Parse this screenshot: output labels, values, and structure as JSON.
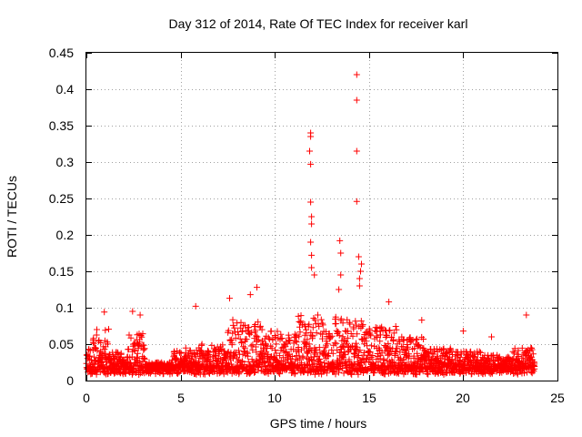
{
  "chart_data": {
    "type": "scatter",
    "title": "Day 312 of 2014, Rate Of TEC Index for receiver karl",
    "xlabel": "GPS time / hours",
    "ylabel": "ROTI / TECUs",
    "xlim": [
      0,
      25
    ],
    "ylim": [
      0,
      0.45
    ],
    "xticks": [
      0,
      5,
      10,
      15,
      20,
      25
    ],
    "xtick_labels": [
      "0",
      "5",
      "10",
      "15",
      "20",
      "25"
    ],
    "yticks": [
      0,
      0.05,
      0.1,
      0.15,
      0.2,
      0.25,
      0.3,
      0.35,
      0.4,
      0.45
    ],
    "ytick_labels": [
      "0",
      "0.05",
      "0.1",
      "0.15",
      "0.2",
      "0.25",
      "0.3",
      "0.35",
      "0.4",
      "0.45"
    ],
    "grid": true,
    "marker": "+",
    "color": "#ff0000",
    "data_range_hours": [
      0,
      23.8
    ],
    "series": [
      {
        "name": "ROTI",
        "notable_points": [
          {
            "x": 0.95,
            "y": 0.094
          },
          {
            "x": 2.45,
            "y": 0.095
          },
          {
            "x": 2.85,
            "y": 0.09
          },
          {
            "x": 5.8,
            "y": 0.102
          },
          {
            "x": 7.6,
            "y": 0.113
          },
          {
            "x": 8.7,
            "y": 0.118
          },
          {
            "x": 9.05,
            "y": 0.128
          },
          {
            "x": 11.9,
            "y": 0.34
          },
          {
            "x": 11.9,
            "y": 0.335
          },
          {
            "x": 11.85,
            "y": 0.315
          },
          {
            "x": 11.9,
            "y": 0.297
          },
          {
            "x": 11.9,
            "y": 0.245
          },
          {
            "x": 11.95,
            "y": 0.225
          },
          {
            "x": 11.95,
            "y": 0.215
          },
          {
            "x": 11.9,
            "y": 0.19
          },
          {
            "x": 11.95,
            "y": 0.172
          },
          {
            "x": 11.95,
            "y": 0.155
          },
          {
            "x": 12.1,
            "y": 0.145
          },
          {
            "x": 13.45,
            "y": 0.192
          },
          {
            "x": 13.5,
            "y": 0.175
          },
          {
            "x": 13.5,
            "y": 0.145
          },
          {
            "x": 13.4,
            "y": 0.125
          },
          {
            "x": 14.35,
            "y": 0.42
          },
          {
            "x": 14.35,
            "y": 0.385
          },
          {
            "x": 14.35,
            "y": 0.315
          },
          {
            "x": 14.35,
            "y": 0.246
          },
          {
            "x": 14.45,
            "y": 0.17
          },
          {
            "x": 14.6,
            "y": 0.16
          },
          {
            "x": 14.55,
            "y": 0.15
          },
          {
            "x": 14.5,
            "y": 0.14
          },
          {
            "x": 14.5,
            "y": 0.13
          },
          {
            "x": 16.05,
            "y": 0.108
          },
          {
            "x": 17.8,
            "y": 0.083
          },
          {
            "x": 20.0,
            "y": 0.068
          },
          {
            "x": 21.5,
            "y": 0.06
          },
          {
            "x": 23.35,
            "y": 0.09
          }
        ]
      }
    ]
  }
}
